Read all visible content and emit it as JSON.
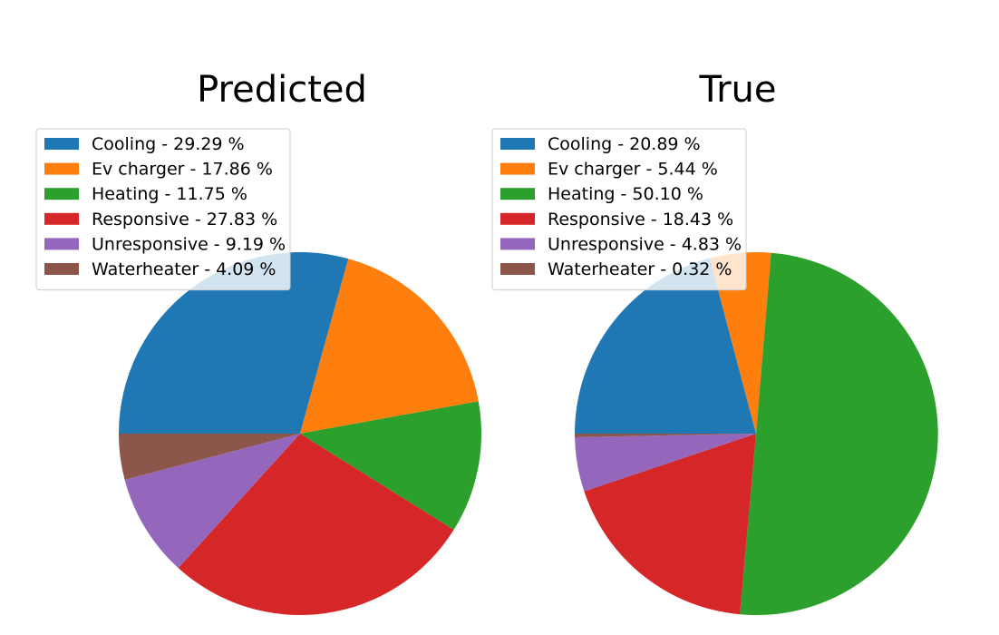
{
  "chart_data": [
    {
      "type": "pie",
      "title": "Predicted",
      "start_angle_deg": 180,
      "direction": "clockwise",
      "legend_position": "upper-left",
      "categories": [
        "Cooling",
        "Ev charger",
        "Heating",
        "Responsive",
        "Unresponsive",
        "Waterheater"
      ],
      "values": [
        29.29,
        17.86,
        11.75,
        27.83,
        9.19,
        4.09
      ],
      "legend_labels": [
        "Cooling - 29.29 %",
        "Ev charger - 17.86 %",
        "Heating - 11.75 %",
        "Responsive - 27.83 %",
        "Unresponsive - 9.19 %",
        "Waterheater - 4.09 %"
      ],
      "colors": [
        "#1f77b4",
        "#ff7f0e",
        "#2ca02c",
        "#d62728",
        "#9467bd",
        "#8c564b"
      ]
    },
    {
      "type": "pie",
      "title": "True",
      "start_angle_deg": 180,
      "direction": "clockwise",
      "legend_position": "upper-left",
      "categories": [
        "Cooling",
        "Ev charger",
        "Heating",
        "Responsive",
        "Unresponsive",
        "Waterheater"
      ],
      "values": [
        20.89,
        5.44,
        50.1,
        18.43,
        4.83,
        0.32
      ],
      "legend_labels": [
        "Cooling - 20.89 %",
        "Ev charger - 5.44 %",
        "Heating - 50.10 %",
        "Responsive - 18.43 %",
        "Unresponsive - 4.83 %",
        "Waterheater - 0.32 %"
      ],
      "colors": [
        "#1f77b4",
        "#ff7f0e",
        "#2ca02c",
        "#d62728",
        "#9467bd",
        "#8c564b"
      ]
    }
  ]
}
